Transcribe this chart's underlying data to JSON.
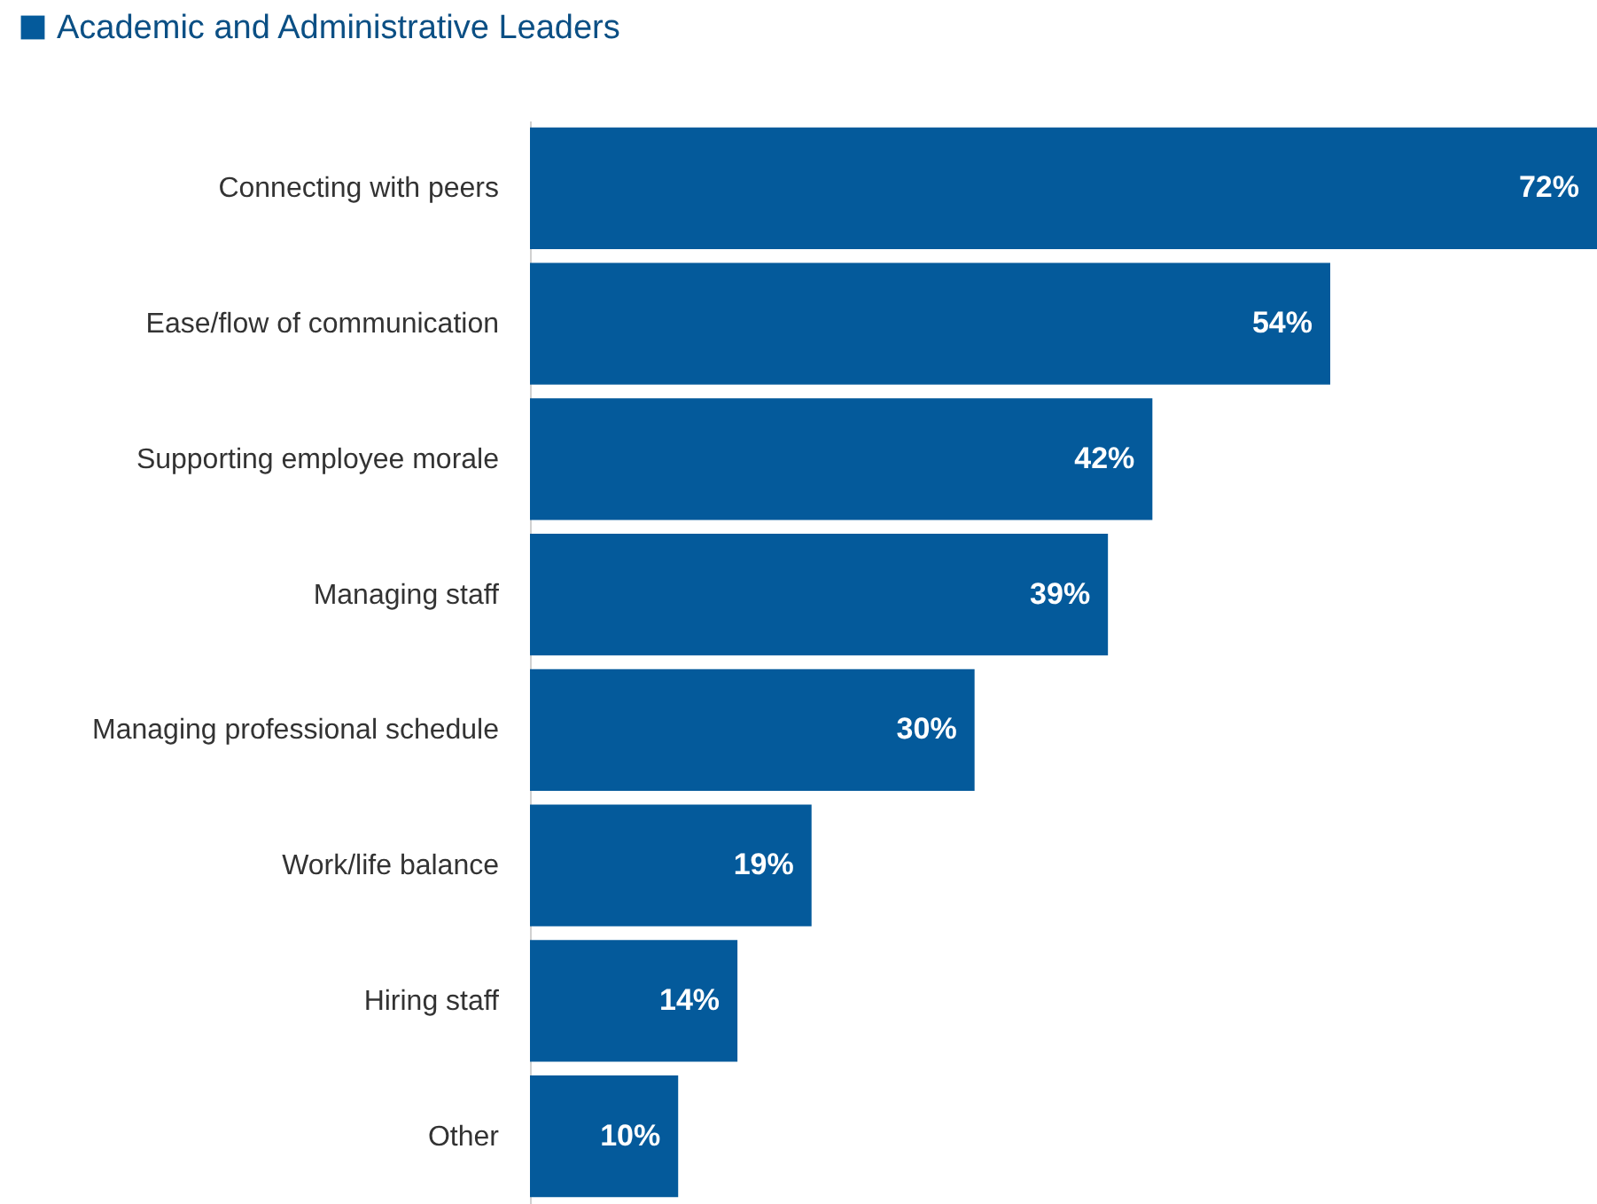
{
  "chart_data": {
    "type": "bar",
    "orientation": "horizontal",
    "categories": [
      "Connecting with peers",
      "Ease/flow of communication",
      "Supporting employee morale",
      "Managing staff",
      "Managing professional schedule",
      "Work/life balance",
      "Hiring staff",
      "Other"
    ],
    "series": [
      {
        "name": "Academic and Administrative Leaders",
        "color": "#045a9b",
        "values": [
          72,
          54,
          42,
          39,
          30,
          19,
          14,
          10
        ],
        "value_labels": [
          "72%",
          "54%",
          "42%",
          "39%",
          "30%",
          "19%",
          "14%",
          "10%"
        ]
      }
    ],
    "legend": "top left"
  }
}
